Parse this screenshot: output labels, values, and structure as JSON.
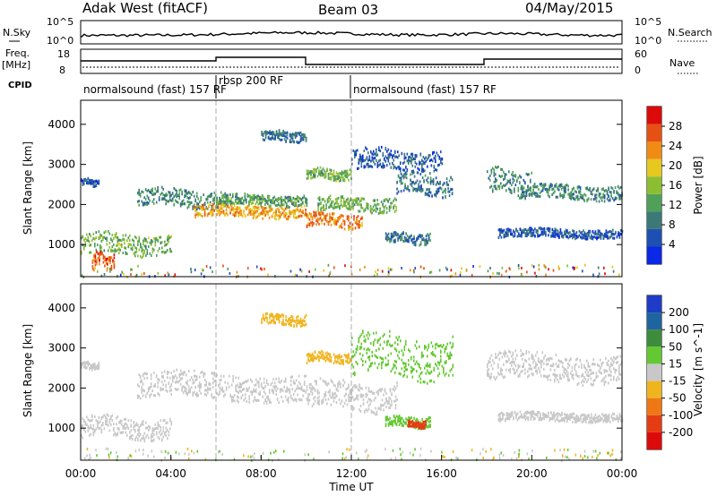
{
  "header": {
    "station": "Adak West (fitACF)",
    "beam": "Beam 03",
    "date": "04/May/2015"
  },
  "strip": {
    "nsky_label": "N.Sky",
    "nsky_ticks": [
      "10^5",
      "10^0"
    ],
    "nsearch_label": "N.Search",
    "nsearch_ticks": [
      "10^5",
      "10^0"
    ],
    "freq_label": "Freq.",
    "freq_unit": "[MHz]",
    "freq_ticks": [
      "18",
      "8"
    ],
    "nave_label": "Nave",
    "nave_ticks": [
      "60",
      "0"
    ],
    "cpid_label": "CPID",
    "cpid_segments": [
      {
        "label": "normalsound (fast) 157 RF",
        "start": 0,
        "end": 6
      },
      {
        "label": "rbsp 200 RF",
        "start": 6,
        "end": 12
      },
      {
        "label": "normalsound (fast) 157 RF",
        "start": 12,
        "end": 24
      }
    ]
  },
  "chart_data": [
    {
      "type": "heatmap",
      "title": "",
      "quantity": "Power",
      "xlabel": "",
      "ylabel": "Slant Range [km]",
      "x_unit": "hours UT",
      "xlim": [
        0,
        24
      ],
      "ylim": [
        200,
        4600
      ],
      "yticks": [
        "1000",
        "2000",
        "3000",
        "4000"
      ],
      "colorbar_label": "Power [dB]",
      "colorbar_ticks": [
        "4",
        "8",
        "12",
        "16",
        "20",
        "24",
        "28"
      ],
      "colorbar_range": [
        0,
        32
      ],
      "colors": [
        "#0a28e6",
        "#1e50b4",
        "#3c7878",
        "#50a05a",
        "#8cbe32",
        "#e6c81e",
        "#f08c14",
        "#e65014",
        "#dc0a0a"
      ],
      "regions": [
        {
          "t0": 0.0,
          "t1": 4.0,
          "r_lo": 700,
          "r_hi": 1300,
          "value": 14
        },
        {
          "t0": 0.5,
          "t1": 1.5,
          "r_lo": 400,
          "r_hi": 800,
          "value": 26
        },
        {
          "t0": 0.0,
          "t1": 0.8,
          "r_lo": 2450,
          "r_hi": 2650,
          "value": 6
        },
        {
          "t0": 2.5,
          "t1": 6.5,
          "r_lo": 1900,
          "r_hi": 2400,
          "value": 10
        },
        {
          "t0": 5.0,
          "t1": 10.0,
          "r_lo": 1650,
          "r_hi": 2000,
          "value": 22
        },
        {
          "t0": 6.0,
          "t1": 10.0,
          "r_lo": 1950,
          "r_hi": 2250,
          "value": 12
        },
        {
          "t0": 8.0,
          "t1": 10.0,
          "r_lo": 3550,
          "r_hi": 3850,
          "value": 8
        },
        {
          "t0": 10.0,
          "t1": 12.5,
          "r_lo": 1400,
          "r_hi": 1800,
          "value": 24
        },
        {
          "t0": 10.0,
          "t1": 12.0,
          "r_lo": 2600,
          "r_hi": 2900,
          "value": 14
        },
        {
          "t0": 10.5,
          "t1": 14.0,
          "r_lo": 1800,
          "r_hi": 2200,
          "value": 14
        },
        {
          "t0": 12.0,
          "t1": 16.0,
          "r_lo": 2800,
          "r_hi": 3400,
          "value": 6
        },
        {
          "t0": 14.0,
          "t1": 16.5,
          "r_lo": 2200,
          "r_hi": 2800,
          "value": 8
        },
        {
          "t0": 13.5,
          "t1": 15.5,
          "r_lo": 1000,
          "r_hi": 1300,
          "value": 8
        },
        {
          "t0": 18.0,
          "t1": 20.0,
          "r_lo": 2200,
          "r_hi": 2900,
          "value": 10
        },
        {
          "t0": 19.5,
          "t1": 24.0,
          "r_lo": 2100,
          "r_hi": 2500,
          "value": 10
        },
        {
          "t0": 18.5,
          "t1": 24.0,
          "r_lo": 1150,
          "r_hi": 1400,
          "value": 6
        }
      ]
    },
    {
      "type": "heatmap",
      "title": "",
      "quantity": "Velocity",
      "xlabel": "Time UT",
      "ylabel": "Slant Range [km]",
      "x_unit": "hours UT",
      "xlim": [
        0,
        24
      ],
      "ylim": [
        200,
        4600
      ],
      "xticks": [
        "00:00",
        "04:00",
        "08:00",
        "12:00",
        "16:00",
        "20:00",
        "00:00"
      ],
      "yticks": [
        "1000",
        "2000",
        "3000",
        "4000"
      ],
      "colorbar_label": "Velocity [m s^-1]",
      "colorbar_ticks": [
        "200",
        "100",
        "50",
        "15",
        "-15",
        "-50",
        "-100",
        "-200"
      ],
      "colors": [
        "#1e3cc8",
        "#1e64a0",
        "#3c8c3c",
        "#64c832",
        "#c8c8c8",
        "#f0b41e",
        "#f07814",
        "#e63c14",
        "#dc0a0a"
      ],
      "regions": [
        {
          "t0": 0.0,
          "t1": 4.0,
          "r_lo": 700,
          "r_hi": 1300,
          "value": 0
        },
        {
          "t0": 0.0,
          "t1": 0.8,
          "r_lo": 2450,
          "r_hi": 2650,
          "value": 0
        },
        {
          "t0": 2.5,
          "t1": 10.0,
          "r_lo": 1650,
          "r_hi": 2400,
          "value": 0
        },
        {
          "t0": 8.0,
          "t1": 10.0,
          "r_lo": 3550,
          "r_hi": 3850,
          "value": -30
        },
        {
          "t0": 10.0,
          "t1": 14.0,
          "r_lo": 1400,
          "r_hi": 2200,
          "value": 0
        },
        {
          "t0": 10.0,
          "t1": 12.0,
          "r_lo": 2600,
          "r_hi": 2900,
          "value": -30
        },
        {
          "t0": 12.0,
          "t1": 16.5,
          "r_lo": 2200,
          "r_hi": 3400,
          "value": 30
        },
        {
          "t0": 13.5,
          "t1": 15.5,
          "r_lo": 1000,
          "r_hi": 1300,
          "value": 40
        },
        {
          "t0": 14.5,
          "t1": 15.3,
          "r_lo": 1000,
          "r_hi": 1200,
          "value": -150
        },
        {
          "t0": 18.0,
          "t1": 24.0,
          "r_lo": 2100,
          "r_hi": 2900,
          "value": 0
        },
        {
          "t0": 18.5,
          "t1": 24.0,
          "r_lo": 1150,
          "r_hi": 1400,
          "value": 0
        }
      ]
    }
  ]
}
